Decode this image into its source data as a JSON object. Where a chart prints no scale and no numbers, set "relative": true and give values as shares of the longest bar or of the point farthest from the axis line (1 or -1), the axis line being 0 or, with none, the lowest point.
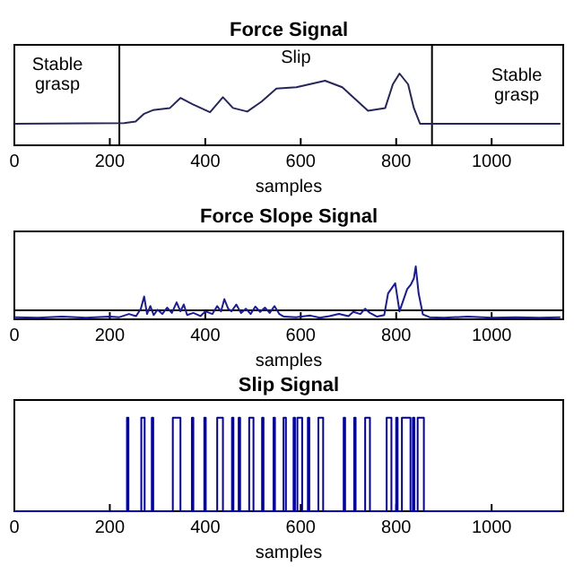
{
  "chart_data": [
    {
      "type": "line",
      "title": "Force Signal",
      "xlabel": "samples",
      "relative": true,
      "tick_labels": "x",
      "xlim": [
        0,
        1150
      ],
      "xticks": [
        0,
        200,
        400,
        600,
        800,
        1000
      ],
      "annotations": [
        "Stable grasp",
        "Slip",
        "Stable grasp"
      ],
      "ref_lines": [
        {
          "axis": "x",
          "value": 220,
          "color": "#000000"
        },
        {
          "axis": "x",
          "value": 875,
          "color": "#000000"
        }
      ],
      "series": [
        {
          "color": "#26265e",
          "x": [
            0,
            230,
            254,
            272,
            290,
            326,
            348,
            374,
            410,
            437,
            458,
            488,
            518,
            549,
            591,
            651,
            687,
            741,
            777,
            793,
            807,
            825,
            837,
            850,
            873,
            1144
          ],
          "values": [
            0.3,
            0.31,
            0.33,
            0.44,
            0.49,
            0.52,
            0.66,
            0.57,
            0.46,
            0.67,
            0.52,
            0.47,
            0.61,
            0.79,
            0.81,
            0.9,
            0.81,
            0.48,
            0.52,
            0.85,
            1.0,
            0.85,
            0.52,
            0.3,
            0.3,
            0.3
          ]
        }
      ]
    },
    {
      "type": "line",
      "title": "Force Slope Signal",
      "xlabel": "samples",
      "relative": true,
      "tick_labels": "x",
      "xlim": [
        0,
        1150
      ],
      "xticks": [
        0,
        200,
        400,
        600,
        800,
        1000
      ],
      "ref_lines": [
        {
          "axis": "y",
          "value": 0.17,
          "color": "#000000"
        }
      ],
      "series": [
        {
          "color": "#1a1aa0",
          "x": [
            0,
            50,
            100,
            150,
            200,
            220,
            240,
            255,
            265,
            272,
            278,
            285,
            292,
            300,
            310,
            320,
            330,
            340,
            348,
            355,
            362,
            375,
            390,
            400,
            415,
            425,
            433,
            440,
            448,
            455,
            465,
            475,
            485,
            495,
            505,
            515,
            525,
            535,
            545,
            555,
            565,
            590,
            620,
            640,
            660,
            680,
            700,
            710,
            725,
            735,
            745,
            760,
            775,
            783,
            798,
            807,
            823,
            831,
            837,
            841,
            847,
            856,
            870,
            900,
            950,
            1000,
            1050,
            1100,
            1144
          ],
          "values": [
            0.04,
            0.03,
            0.05,
            0.03,
            0.05,
            0.04,
            0.1,
            0.06,
            0.2,
            0.43,
            0.1,
            0.25,
            0.08,
            0.18,
            0.1,
            0.22,
            0.12,
            0.32,
            0.15,
            0.28,
            0.08,
            0.12,
            0.06,
            0.15,
            0.1,
            0.25,
            0.15,
            0.38,
            0.2,
            0.15,
            0.28,
            0.12,
            0.2,
            0.1,
            0.24,
            0.14,
            0.22,
            0.12,
            0.25,
            0.1,
            0.05,
            0.04,
            0.07,
            0.03,
            0.06,
            0.1,
            0.06,
            0.14,
            0.1,
            0.2,
            0.12,
            0.05,
            0.08,
            0.49,
            0.68,
            0.15,
            0.57,
            0.66,
            0.77,
            1.0,
            0.49,
            0.09,
            0.04,
            0.03,
            0.05,
            0.03,
            0.04,
            0.03,
            0.04
          ]
        }
      ]
    },
    {
      "type": "step",
      "title": "Slip Signal",
      "xlabel": "samples",
      "relative": true,
      "tick_labels": "x",
      "xlim": [
        0,
        1150
      ],
      "xticks": [
        0,
        200,
        400,
        600,
        800,
        1000
      ],
      "series": [
        {
          "color": "#0000b0",
          "x": [
            0,
            236,
            239,
            266,
            273,
            288,
            291,
            332,
            348,
            372,
            375,
            398,
            401,
            425,
            437,
            456,
            459,
            470,
            473,
            492,
            501,
            519,
            522,
            543,
            546,
            564,
            569,
            585,
            588,
            593,
            603,
            615,
            618,
            637,
            647,
            690,
            693,
            712,
            715,
            735,
            745,
            780,
            790,
            800,
            803,
            812,
            830,
            835,
            838,
            845,
            858,
            1144
          ],
          "values": [
            0,
            1,
            0,
            1,
            0,
            1,
            0,
            1,
            0,
            1,
            0,
            1,
            0,
            1,
            0,
            1,
            0,
            1,
            0,
            1,
            0,
            1,
            0,
            1,
            0,
            1,
            0,
            1,
            0,
            1,
            0,
            1,
            0,
            1,
            0,
            1,
            0,
            1,
            0,
            1,
            0,
            1,
            0,
            1,
            0,
            1,
            0,
            1,
            0,
            1,
            0,
            0
          ]
        }
      ]
    }
  ]
}
